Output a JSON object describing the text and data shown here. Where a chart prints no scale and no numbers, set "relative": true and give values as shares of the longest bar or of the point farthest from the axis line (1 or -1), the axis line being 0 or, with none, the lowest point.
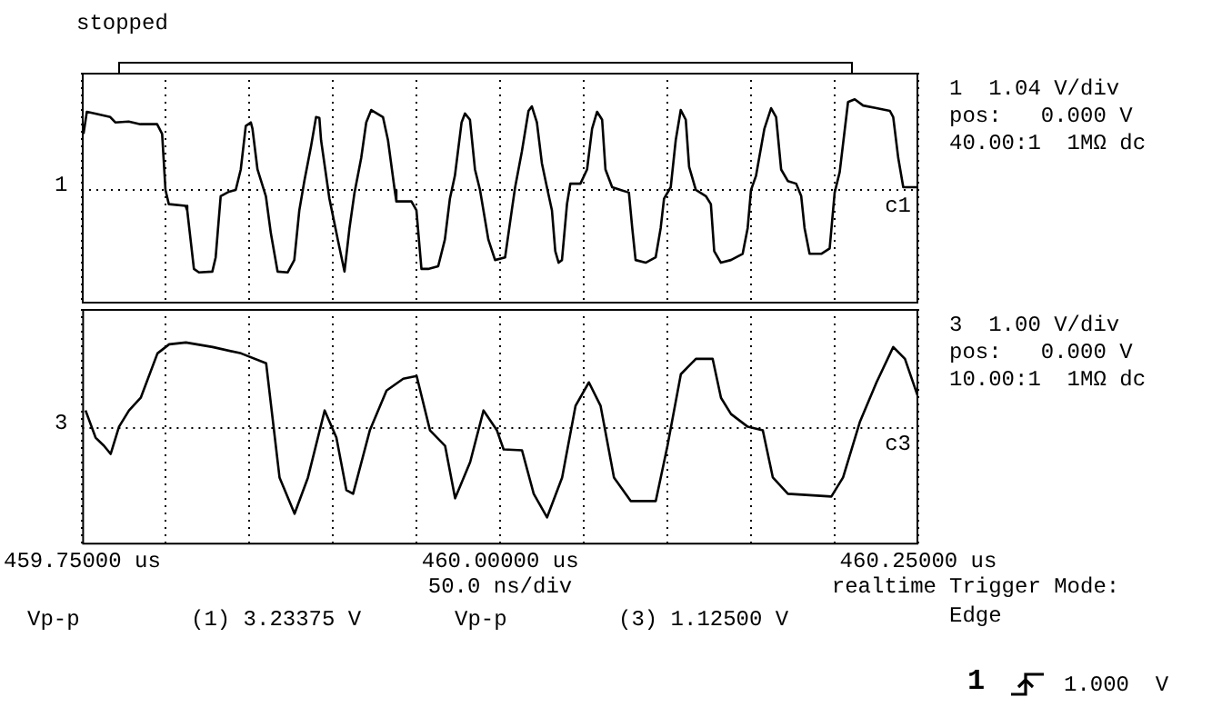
{
  "chart_data": [
    {
      "type": "line",
      "relative": true,
      "xlim": [
        459.75,
        460.25
      ],
      "xticks": [
        {
          "value": 459.75,
          "label": null
        },
        {
          "value": 459.8,
          "label": null
        },
        {
          "value": 459.85,
          "label": null
        },
        {
          "value": 459.9,
          "label": null
        },
        {
          "value": 459.95,
          "label": null
        },
        {
          "value": 460.0,
          "label": null
        },
        {
          "value": 460.05,
          "label": null
        },
        {
          "value": 460.1,
          "label": null
        },
        {
          "value": 460.15,
          "label": null
        },
        {
          "value": 460.2,
          "label": null
        },
        {
          "value": 460.25,
          "label": null
        }
      ],
      "tick_labels": false,
      "grid": "x",
      "legend": false,
      "marker": "none",
      "line_style": "solid",
      "annotations": [
        "stopped",
        "1",
        "1  1.04 V/div",
        "pos:   0.000 V",
        "40.00:1  1MΩ dc"
      ],
      "series": [
        {
          "name": "c1",
          "color": "#000000",
          "x": [
            459.751,
            459.753,
            459.758,
            459.767,
            459.77,
            459.778,
            459.785,
            459.795,
            459.798,
            459.8,
            459.802,
            459.812,
            459.813,
            459.817,
            459.82,
            459.828,
            459.83,
            459.833,
            459.838,
            459.842,
            459.845,
            459.848,
            459.851,
            459.852,
            459.855,
            459.86,
            459.863,
            459.867,
            459.873,
            459.877,
            459.88,
            459.883,
            459.887,
            459.89,
            459.892,
            459.893,
            459.898,
            459.903,
            459.907,
            459.908,
            459.91,
            459.913,
            459.917,
            459.92,
            459.923,
            459.93,
            459.933,
            459.937,
            459.938,
            459.947,
            459.95,
            459.953,
            459.957,
            459.963,
            459.967,
            459.97,
            459.973,
            459.977,
            459.979,
            459.982,
            459.985,
            459.988,
            459.993,
            459.997,
            460.003,
            460.007,
            460.009,
            460.013,
            460.017,
            460.019,
            460.022,
            460.025,
            460.028,
            460.031,
            460.033,
            460.035,
            460.037,
            460.04,
            460.042,
            460.048,
            460.052,
            460.055,
            460.058,
            460.061,
            460.063,
            460.067,
            460.072,
            460.077,
            460.079,
            460.081,
            460.087,
            460.093,
            460.096,
            460.098,
            460.102,
            460.105,
            460.108,
            460.111,
            460.113,
            460.117,
            460.123,
            460.126,
            460.128,
            460.132,
            460.138,
            460.145,
            460.148,
            460.15,
            460.153,
            460.158,
            460.162,
            460.165,
            460.168,
            460.172,
            460.177,
            460.18,
            460.182,
            460.185,
            460.192,
            460.197,
            460.2,
            460.203,
            460.208,
            460.212,
            460.217,
            460.225,
            460.233,
            460.235,
            460.238,
            460.241,
            460.25
          ],
          "values": [
            0.61,
            0.86,
            0.84,
            0.8,
            0.74,
            0.75,
            0.72,
            0.72,
            0.61,
            -0.02,
            -0.18,
            -0.2,
            -0.25,
            -0.91,
            -0.95,
            -0.94,
            -0.78,
            -0.09,
            -0.04,
            -0.02,
            0.21,
            0.7,
            0.74,
            0.67,
            0.21,
            -0.09,
            -0.51,
            -0.94,
            -0.95,
            -0.81,
            -0.25,
            0.08,
            0.47,
            0.8,
            0.79,
            0.54,
            -0.12,
            -0.58,
            -0.94,
            -0.78,
            -0.45,
            -0.05,
            0.34,
            0.74,
            0.88,
            0.8,
            0.54,
            -0.02,
            -0.15,
            -0.15,
            -0.25,
            -0.91,
            -0.91,
            -0.88,
            -0.58,
            -0.12,
            0.14,
            0.74,
            0.84,
            0.77,
            0.21,
            -0.02,
            -0.58,
            -0.81,
            -0.78,
            -0.25,
            0.01,
            0.41,
            0.87,
            0.92,
            0.74,
            0.28,
            0.01,
            -0.25,
            -0.71,
            -0.84,
            -0.81,
            -0.18,
            0.05,
            0.05,
            0.21,
            0.67,
            0.86,
            0.77,
            0.21,
            0.01,
            -0.02,
            -0.05,
            -0.45,
            -0.81,
            -0.84,
            -0.78,
            -0.45,
            -0.12,
            0.01,
            0.54,
            0.88,
            0.77,
            0.24,
            -0.02,
            -0.09,
            -0.18,
            -0.71,
            -0.84,
            -0.81,
            -0.74,
            -0.45,
            -0.02,
            0.14,
            0.67,
            0.9,
            0.8,
            0.21,
            0.08,
            0.05,
            -0.09,
            -0.45,
            -0.74,
            -0.74,
            -0.68,
            -0.05,
            0.18,
            0.97,
            1.0,
            0.93,
            0.9,
            0.87,
            0.8,
            0.34,
            0.01,
            0.01
          ]
        }
      ]
    },
    {
      "type": "line",
      "relative": true,
      "xlim": [
        459.75,
        460.25
      ],
      "xticks": [
        {
          "value": 459.75,
          "label": "459.75000 us"
        },
        {
          "value": 459.8,
          "label": null
        },
        {
          "value": 459.85,
          "label": null
        },
        {
          "value": 459.9,
          "label": null
        },
        {
          "value": 459.95,
          "label": null
        },
        {
          "value": 460.0,
          "label": "460.00000 us"
        },
        {
          "value": 460.05,
          "label": null
        },
        {
          "value": 460.1,
          "label": null
        },
        {
          "value": 460.15,
          "label": null
        },
        {
          "value": 460.2,
          "label": null
        },
        {
          "value": 460.25,
          "label": "460.25000 us"
        }
      ],
      "tick_labels": "x",
      "grid": "x",
      "legend": false,
      "marker": "none",
      "line_style": "solid",
      "annotations": [
        "3",
        "3  1.00 V/div",
        "pos:   0.000 V",
        "10.00:1  1MΩ dc",
        "50.0 ns/div",
        "realtime",
        "Trigger Mode:",
        "Edge",
        "Vp-p",
        "(1) 3.23375 V",
        "Vp-p",
        "(3) 1.12500 V",
        "1",
        "1.000  V"
      ],
      "series": [
        {
          "name": "c3",
          "color": "#000000",
          "x": [
            459.752,
            459.758,
            459.763,
            459.767,
            459.772,
            459.778,
            459.785,
            459.795,
            459.802,
            459.812,
            459.828,
            459.845,
            459.86,
            459.868,
            459.877,
            459.885,
            459.895,
            459.902,
            459.908,
            459.912,
            459.922,
            459.932,
            459.942,
            459.95,
            459.958,
            459.967,
            459.973,
            459.982,
            459.99,
            459.998,
            460.002,
            460.013,
            460.02,
            460.028,
            460.037,
            460.045,
            460.053,
            460.06,
            460.068,
            460.078,
            460.093,
            460.1,
            460.108,
            460.117,
            460.127,
            460.132,
            460.138,
            460.148,
            460.157,
            460.163,
            460.172,
            460.198,
            460.205,
            460.215,
            460.225,
            460.235,
            460.242,
            460.25
          ],
          "values": [
            0.18,
            -0.12,
            -0.21,
            -0.3,
            0,
            0.18,
            0.32,
            0.81,
            0.91,
            0.93,
            0.88,
            0.81,
            0.7,
            -0.56,
            -0.96,
            -0.56,
            0.18,
            -0.12,
            -0.7,
            -0.74,
            -0.04,
            0.4,
            0.53,
            0.56,
            -0.04,
            -0.21,
            -0.79,
            -0.39,
            0.18,
            -0.04,
            -0.25,
            -0.26,
            -0.74,
            -1.0,
            -0.56,
            0.23,
            0.49,
            0.23,
            -0.56,
            -0.82,
            -0.82,
            -0.21,
            0.58,
            0.75,
            0.75,
            0.32,
            0.14,
            0,
            -0.04,
            -0.56,
            -0.74,
            -0.77,
            -0.56,
            0.05,
            0.49,
            0.88,
            0.75,
            0.32
          ]
        }
      ]
    }
  ]
}
